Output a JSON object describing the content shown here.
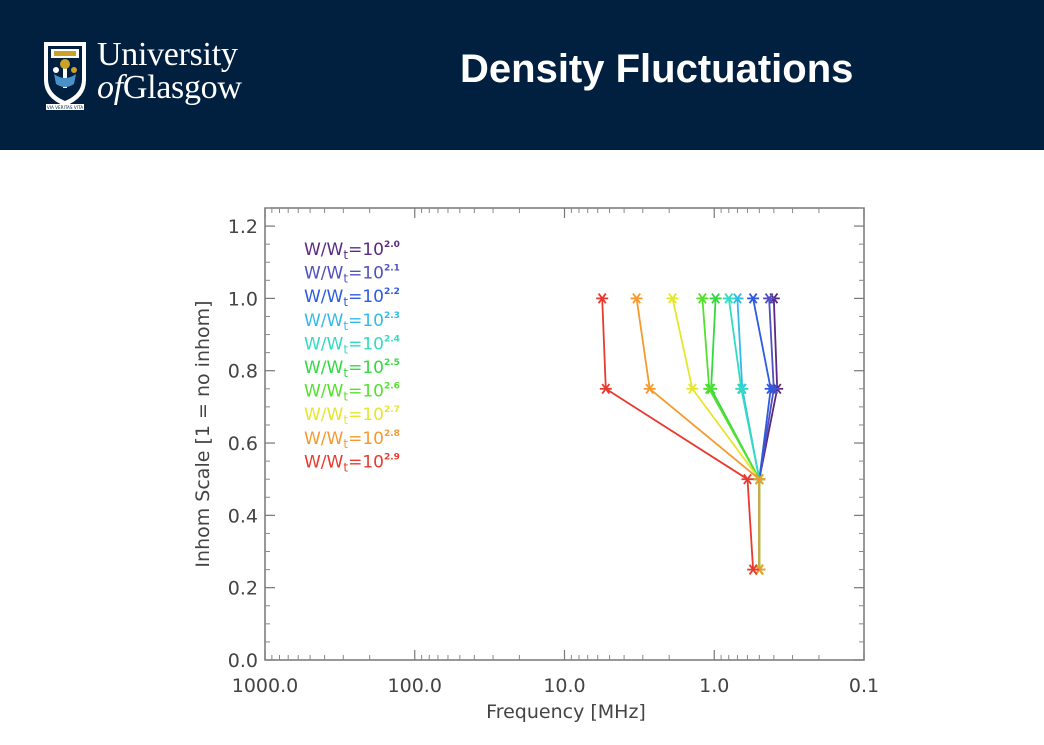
{
  "header": {
    "logo": {
      "line1": "University",
      "line2_of": "of",
      "line2_name": "Glasgow",
      "motto": "VIA VERITAS VITA"
    },
    "title": "Density Fluctuations"
  },
  "chart_data": {
    "type": "line",
    "xlabel": "Frequency [MHz]",
    "ylabel": "Inhom Scale [1 = no inhom]",
    "x_scale": "log",
    "x_reversed": true,
    "xlim": [
      1000.0,
      0.1
    ],
    "ylim": [
      0.0,
      1.25
    ],
    "x_ticks": [
      "1000.0",
      "100.0",
      "10.0",
      "1.0",
      "0.1"
    ],
    "y_ticks": [
      "0.0",
      "0.2",
      "0.4",
      "0.6",
      "0.8",
      "1.0",
      "1.2"
    ],
    "grid": false,
    "legend_position": "top-left",
    "marker": "asterisk",
    "series": [
      {
        "name": "W/W_t=10^2.0",
        "label_base": "W/W",
        "label_sub": "t",
        "label_eq": "=10",
        "label_exp": "2.0",
        "color": "#5a2a82",
        "x": [
          0.4,
          0.38,
          0.5,
          0.5
        ],
        "y": [
          1.0,
          0.75,
          0.5,
          0.25
        ]
      },
      {
        "name": "W/W_t=10^2.1",
        "label_base": "W/W",
        "label_sub": "t",
        "label_eq": "=10",
        "label_exp": "2.1",
        "color": "#5050c0",
        "x": [
          0.43,
          0.4,
          0.5,
          0.5
        ],
        "y": [
          1.0,
          0.75,
          0.5,
          0.25
        ]
      },
      {
        "name": "W/W_t=10^2.2",
        "label_base": "W/W",
        "label_sub": "t",
        "label_eq": "=10",
        "label_exp": "2.2",
        "color": "#2e5be0",
        "x": [
          0.55,
          0.42,
          0.5,
          0.5
        ],
        "y": [
          1.0,
          0.75,
          0.5,
          0.25
        ]
      },
      {
        "name": "W/W_t=10^2.3",
        "label_base": "W/W",
        "label_sub": "t",
        "label_eq": "=10",
        "label_exp": "2.3",
        "color": "#33bbe8",
        "x": [
          0.7,
          0.65,
          0.5,
          0.5
        ],
        "y": [
          1.0,
          0.75,
          0.5,
          0.25
        ]
      },
      {
        "name": "W/W_t=10^2.4",
        "label_base": "W/W",
        "label_sub": "t",
        "label_eq": "=10",
        "label_exp": "2.4",
        "color": "#33dbc2",
        "x": [
          0.8,
          0.66,
          0.5,
          0.5
        ],
        "y": [
          1.0,
          0.75,
          0.5,
          0.25
        ]
      },
      {
        "name": "W/W_t=10^2.5",
        "label_base": "W/W",
        "label_sub": "t",
        "label_eq": "=10",
        "label_exp": "2.5",
        "color": "#33d940",
        "x": [
          0.98,
          1.05,
          0.5,
          0.5
        ],
        "y": [
          1.0,
          0.75,
          0.5,
          0.25
        ]
      },
      {
        "name": "W/W_t=10^2.6",
        "label_base": "W/W",
        "label_sub": "t",
        "label_eq": "=10",
        "label_exp": "2.6",
        "color": "#55e02e",
        "x": [
          1.2,
          1.08,
          0.5,
          0.5
        ],
        "y": [
          1.0,
          0.75,
          0.5,
          0.25
        ]
      },
      {
        "name": "W/W_t=10^2.7",
        "label_base": "W/W",
        "label_sub": "t",
        "label_eq": "=10",
        "label_exp": "2.7",
        "color": "#e6e62e",
        "x": [
          1.9,
          1.4,
          0.5,
          0.5
        ],
        "y": [
          1.0,
          0.75,
          0.5,
          0.25
        ]
      },
      {
        "name": "W/W_t=10^2.8",
        "label_base": "W/W",
        "label_sub": "t",
        "label_eq": "=10",
        "label_exp": "2.8",
        "color": "#f59a2e",
        "x": [
          3.3,
          2.7,
          0.5,
          0.5
        ],
        "y": [
          1.0,
          0.75,
          0.5,
          0.25
        ]
      },
      {
        "name": "W/W_t=10^2.9",
        "label_base": "W/W",
        "label_sub": "t",
        "label_eq": "=10",
        "label_exp": "2.9",
        "color": "#e83a2e",
        "x": [
          5.6,
          5.3,
          0.6,
          0.55
        ],
        "y": [
          1.0,
          0.75,
          0.5,
          0.25
        ]
      }
    ]
  }
}
